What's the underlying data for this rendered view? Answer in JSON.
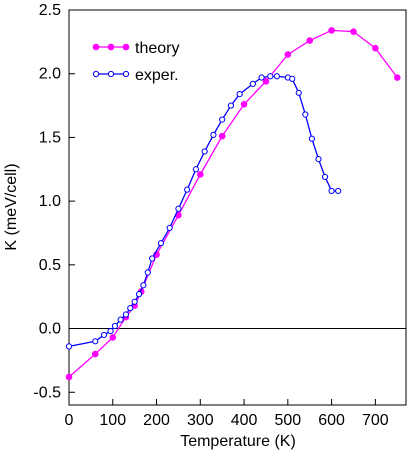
{
  "chart_data": {
    "type": "line",
    "xlabel": "Temperature  (K)",
    "ylabel": "K   (meV/cell)",
    "xlim": [
      0,
      770
    ],
    "ylim": [
      -0.6,
      2.5
    ],
    "xticks": [
      0,
      100,
      200,
      300,
      400,
      500,
      600,
      700
    ],
    "xtick_labels": [
      "0",
      "100",
      "200",
      "300",
      "400",
      "500",
      "600",
      "700"
    ],
    "yticks": [
      -0.5,
      0.0,
      0.5,
      1.0,
      1.5,
      2.0,
      2.5
    ],
    "ytick_labels": [
      "-0.5",
      "0.0",
      "0.5",
      "1.0",
      "1.5",
      "2.0",
      "2.5"
    ],
    "zero_line": true,
    "grid": false,
    "legend_position": "top-left",
    "series": [
      {
        "name": "theory",
        "color": "#ff00ff",
        "marker": "filled-circle",
        "x": [
          0,
          60,
          100,
          130,
          150,
          165,
          200,
          250,
          300,
          350,
          400,
          450,
          500,
          550,
          600,
          650,
          700,
          750
        ],
        "y": [
          -0.38,
          -0.2,
          -0.07,
          0.09,
          0.18,
          0.29,
          0.58,
          0.89,
          1.21,
          1.51,
          1.76,
          1.94,
          2.15,
          2.26,
          2.34,
          2.33,
          2.2,
          1.97
        ]
      },
      {
        "name": "exper.",
        "color": "#0000ff",
        "marker": "open-circle",
        "x": [
          0,
          60,
          80,
          95,
          105,
          118,
          130,
          140,
          150,
          160,
          170,
          180,
          190,
          210,
          230,
          250,
          270,
          290,
          310,
          330,
          350,
          370,
          390,
          420,
          440,
          460,
          475,
          500,
          510,
          525,
          540,
          555,
          570,
          585,
          600,
          615
        ],
        "y": [
          -0.14,
          -0.1,
          -0.05,
          -0.02,
          0.02,
          0.07,
          0.11,
          0.16,
          0.21,
          0.27,
          0.34,
          0.44,
          0.55,
          0.67,
          0.79,
          0.94,
          1.09,
          1.25,
          1.39,
          1.52,
          1.64,
          1.75,
          1.84,
          1.92,
          1.97,
          1.98,
          1.98,
          1.97,
          1.96,
          1.85,
          1.68,
          1.49,
          1.33,
          1.19,
          1.08,
          1.08
        ]
      }
    ]
  }
}
